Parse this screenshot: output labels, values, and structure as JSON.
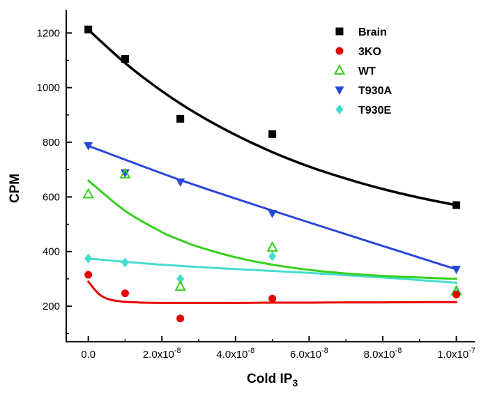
{
  "chart_data": {
    "type": "scatter",
    "title": "",
    "xlabel": {
      "text": "Cold IP",
      "sub": "3"
    },
    "ylabel": "CPM",
    "xlim": [
      -6e-09,
      1.05e-07
    ],
    "ylim": [
      70,
      1285
    ],
    "grid": false,
    "legend_position": "top-right",
    "x_major_ticks": [
      {
        "value": 0,
        "mantissa": "0.0",
        "exp": ""
      },
      {
        "value": 2e-08,
        "mantissa": "2.0x10",
        "exp": "-8"
      },
      {
        "value": 4e-08,
        "mantissa": "4.0x10",
        "exp": "-8"
      },
      {
        "value": 6e-08,
        "mantissa": "6.0x10",
        "exp": "-8"
      },
      {
        "value": 8e-08,
        "mantissa": "8.0x10",
        "exp": "-8"
      },
      {
        "value": 1e-07,
        "mantissa": "1.0x10",
        "exp": "-7"
      }
    ],
    "x_minor_ticks": [
      1e-08,
      3e-08,
      5e-08,
      7e-08,
      9e-08
    ],
    "y_major_ticks": [
      200,
      400,
      600,
      800,
      1000,
      1200
    ],
    "y_minor_ticks": [
      100,
      300,
      500,
      700,
      900,
      1100
    ],
    "series": [
      {
        "name": "Brain",
        "marker": "square",
        "fill": "filled",
        "color": "#000000",
        "line_width": 3.5,
        "points": [
          [
            0,
            1213
          ],
          [
            1e-08,
            1105
          ],
          [
            2.5e-08,
            886
          ],
          [
            5e-08,
            830
          ],
          [
            1e-07,
            570
          ]
        ],
        "fit_curve": [
          [
            0,
            1212
          ],
          [
            1e-08,
            1090
          ],
          [
            2e-08,
            987
          ],
          [
            3e-08,
            900
          ],
          [
            4e-08,
            827
          ],
          [
            5e-08,
            764
          ],
          [
            6e-08,
            711
          ],
          [
            7e-08,
            667
          ],
          [
            8e-08,
            629
          ],
          [
            9e-08,
            597
          ],
          [
            1e-07,
            570
          ]
        ]
      },
      {
        "name": "3KO",
        "marker": "circle",
        "fill": "filled",
        "color": "#e60000",
        "line_width": 3,
        "points": [
          [
            0,
            315
          ],
          [
            1e-08,
            247
          ],
          [
            2.5e-08,
            155
          ],
          [
            5e-08,
            228
          ],
          [
            1e-07,
            243
          ]
        ],
        "fit_curve": [
          [
            0,
            290
          ],
          [
            3e-09,
            243
          ],
          [
            6e-09,
            224
          ],
          [
            1e-08,
            216
          ],
          [
            1.5e-08,
            213
          ],
          [
            2e-08,
            212
          ],
          [
            3e-08,
            212
          ],
          [
            4e-08,
            212
          ],
          [
            5e-08,
            213
          ],
          [
            6e-08,
            213
          ],
          [
            7e-08,
            214
          ],
          [
            8e-08,
            214
          ],
          [
            9e-08,
            215
          ],
          [
            1e-07,
            215
          ]
        ]
      },
      {
        "name": "WT",
        "marker": "triangle-up",
        "fill": "open",
        "color": "#35d01c",
        "line_width": 3,
        "points": [
          [
            0,
            610
          ],
          [
            1e-08,
            683
          ],
          [
            2.5e-08,
            272
          ],
          [
            5e-08,
            415
          ],
          [
            1e-07,
            255
          ]
        ],
        "fit_curve": [
          [
            0,
            660
          ],
          [
            1e-08,
            549
          ],
          [
            2e-08,
            471
          ],
          [
            2.5e-08,
            442
          ],
          [
            3e-08,
            417
          ],
          [
            4e-08,
            379
          ],
          [
            5e-08,
            352
          ],
          [
            6e-08,
            333
          ],
          [
            7e-08,
            320
          ],
          [
            8e-08,
            311
          ],
          [
            9e-08,
            305
          ],
          [
            1e-07,
            300
          ]
        ]
      },
      {
        "name": "T930A",
        "marker": "triangle-down",
        "fill": "filled",
        "color": "#2846dc",
        "line_width": 3,
        "points": [
          [
            0,
            788
          ],
          [
            1e-08,
            688
          ],
          [
            2.5e-08,
            655
          ],
          [
            5e-08,
            540
          ],
          [
            1e-07,
            335
          ]
        ],
        "fit_curve": [
          [
            0,
            787
          ],
          [
            2.5e-08,
            662
          ],
          [
            5e-08,
            550
          ],
          [
            7.5e-08,
            442
          ],
          [
            1e-07,
            335
          ]
        ]
      },
      {
        "name": "T930E",
        "marker": "diamond",
        "fill": "filled",
        "color": "#45dcd0",
        "line_width": 3,
        "points": [
          [
            0,
            375
          ],
          [
            1e-08,
            360
          ],
          [
            2.5e-08,
            300
          ],
          [
            5e-08,
            383
          ],
          [
            1e-07,
            250
          ]
        ],
        "fit_curve": [
          [
            0,
            374
          ],
          [
            2e-08,
            352
          ],
          [
            4e-08,
            336
          ],
          [
            6e-08,
            322
          ],
          [
            8e-08,
            305
          ],
          [
            1e-07,
            286
          ]
        ]
      }
    ]
  }
}
